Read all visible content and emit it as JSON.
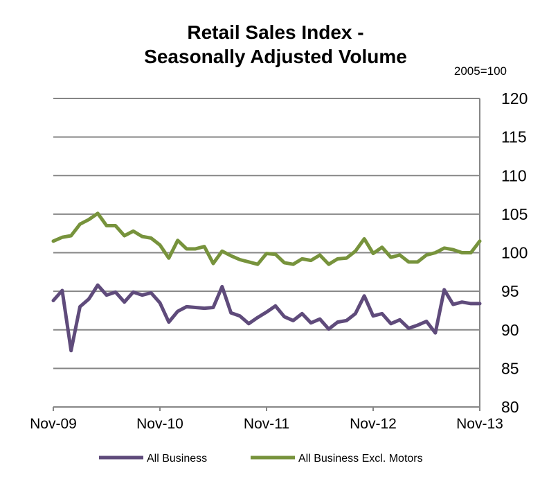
{
  "chart_data": {
    "type": "line",
    "title_lines": [
      "Retail Sales Index -",
      "Seasonally Adjusted Volume"
    ],
    "unit_label": "2005=100",
    "x": [
      "Nov-09",
      "Dec-09",
      "Jan-10",
      "Feb-10",
      "Mar-10",
      "Apr-10",
      "May-10",
      "Jun-10",
      "Jul-10",
      "Aug-10",
      "Sep-10",
      "Oct-10",
      "Nov-10",
      "Dec-10",
      "Jan-11",
      "Feb-11",
      "Mar-11",
      "Apr-11",
      "May-11",
      "Jun-11",
      "Jul-11",
      "Aug-11",
      "Sep-11",
      "Oct-11",
      "Nov-11",
      "Dec-11",
      "Jan-12",
      "Feb-12",
      "Mar-12",
      "Apr-12",
      "May-12",
      "Jun-12",
      "Jul-12",
      "Aug-12",
      "Sep-12",
      "Oct-12",
      "Nov-12",
      "Dec-12",
      "Jan-13",
      "Feb-13",
      "Mar-13",
      "Apr-13",
      "May-13",
      "Jun-13",
      "Jul-13",
      "Aug-13",
      "Sep-13",
      "Oct-13",
      "Nov-13"
    ],
    "x_tick_labels": [
      "Nov-09",
      "Nov-10",
      "Nov-11",
      "Nov-12",
      "Nov-13"
    ],
    "x_tick_indices": [
      0,
      12,
      24,
      36,
      48
    ],
    "ylim": [
      80,
      120
    ],
    "y_ticks": [
      80,
      85,
      90,
      95,
      100,
      105,
      110,
      115,
      120
    ],
    "y_axis_side": "right",
    "grid": true,
    "legend_position": "bottom",
    "series": [
      {
        "name": "All Business",
        "color": "#5f4b7b",
        "values": [
          93.8,
          95.1,
          87.3,
          93.0,
          94.0,
          95.8,
          94.5,
          94.9,
          93.6,
          94.9,
          94.5,
          94.8,
          93.5,
          91.0,
          92.4,
          93.0,
          92.9,
          92.8,
          92.9,
          95.6,
          92.2,
          91.8,
          90.8,
          91.6,
          92.3,
          93.1,
          91.7,
          91.2,
          92.1,
          90.9,
          91.4,
          90.1,
          91.0,
          91.2,
          92.1,
          94.4,
          91.8,
          92.1,
          90.8,
          91.3,
          90.2,
          90.6,
          91.1,
          89.6,
          95.2,
          93.3,
          93.6,
          93.4,
          93.4
        ]
      },
      {
        "name": "All Business Excl. Motors",
        "color": "#77933c",
        "values": [
          101.5,
          102.0,
          102.2,
          103.7,
          104.3,
          105.1,
          103.5,
          103.5,
          102.2,
          102.8,
          102.1,
          101.9,
          101.0,
          99.3,
          101.6,
          100.5,
          100.5,
          100.8,
          98.6,
          100.2,
          99.6,
          99.1,
          98.8,
          98.5,
          99.9,
          99.8,
          98.7,
          98.5,
          99.2,
          99.0,
          99.7,
          98.5,
          99.2,
          99.3,
          100.2,
          101.8,
          99.9,
          100.7,
          99.4,
          99.7,
          98.8,
          98.8,
          99.7,
          100.0,
          100.6,
          100.4,
          100.0,
          100.0,
          101.5
        ]
      }
    ]
  }
}
